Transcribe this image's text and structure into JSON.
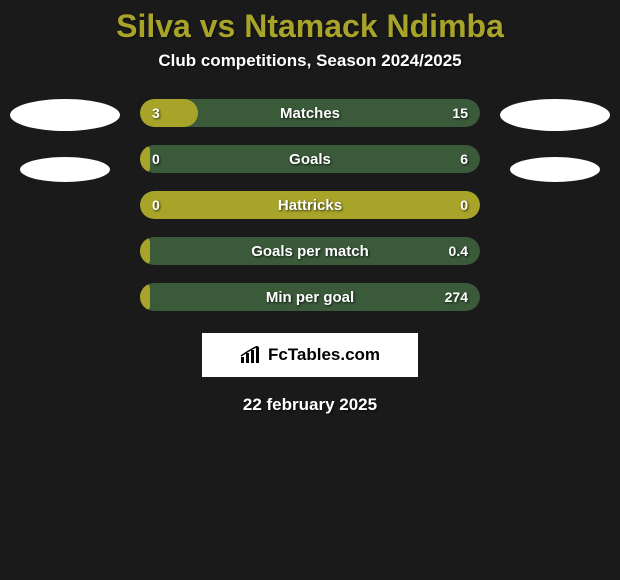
{
  "background_color": "#1a1a1a",
  "title": {
    "text": "Silva vs Ntamack Ndimba",
    "color": "#a8a42a",
    "fontsize": 32
  },
  "subtitle": {
    "text": "Club competitions, Season 2024/2025",
    "fontsize": 17
  },
  "bars": {
    "fill_color": "#a8a42a",
    "bg_color": "#3a5a3a",
    "label_fontsize": 15,
    "value_fontsize": 14,
    "items": [
      {
        "label": "Matches",
        "left": "3",
        "right": "15",
        "fill_pct": 17
      },
      {
        "label": "Goals",
        "left": "0",
        "right": "6",
        "fill_pct": 3
      },
      {
        "label": "Hattricks",
        "left": "0",
        "right": "0",
        "fill_pct": 100
      },
      {
        "label": "Goals per match",
        "left": "",
        "right": "0.4",
        "fill_pct": 3
      },
      {
        "label": "Min per goal",
        "left": "",
        "right": "274",
        "fill_pct": 3
      }
    ]
  },
  "brand": {
    "text": "FcTables.com"
  },
  "date": {
    "text": "22 february 2025",
    "fontsize": 17
  }
}
